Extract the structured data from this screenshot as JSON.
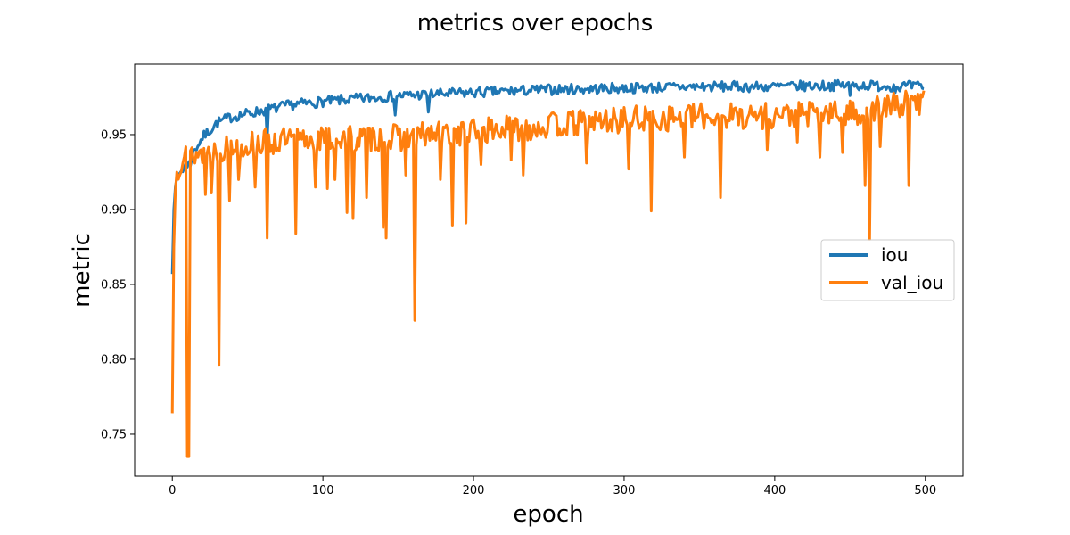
{
  "chart_data": {
    "type": "line",
    "title": "metrics over epochs",
    "xlabel": "epoch",
    "ylabel": "metric",
    "xlim": [
      -25,
      525
    ],
    "ylim": [
      0.722,
      0.997
    ],
    "xticks": [
      0,
      100,
      200,
      300,
      400,
      500
    ],
    "yticks": [
      0.75,
      0.8,
      0.85,
      0.9,
      0.95
    ],
    "ytick_labels": [
      "0.75",
      "0.80",
      "0.85",
      "0.90",
      "0.95"
    ],
    "grid": false,
    "legend_position": "center-right",
    "n_epochs": 500,
    "series": [
      {
        "name": "iou",
        "color": "#1f77b4",
        "anchors": [
          [
            0,
            0.857
          ],
          [
            1,
            0.9
          ],
          [
            2,
            0.915
          ],
          [
            3,
            0.921
          ],
          [
            5,
            0.925
          ],
          [
            10,
            0.93
          ],
          [
            15,
            0.94
          ],
          [
            20,
            0.948
          ],
          [
            30,
            0.958
          ],
          [
            40,
            0.962
          ],
          [
            60,
            0.966
          ],
          [
            80,
            0.97
          ],
          [
            100,
            0.972
          ],
          [
            150,
            0.976
          ],
          [
            200,
            0.978
          ],
          [
            250,
            0.98
          ],
          [
            300,
            0.981
          ],
          [
            350,
            0.982
          ],
          [
            400,
            0.982
          ],
          [
            450,
            0.983
          ],
          [
            500,
            0.982
          ]
        ],
        "noise": 0.0035,
        "noise_seed": 7,
        "dips": [
          [
            11,
            0.932
          ],
          [
            12,
            0.929
          ],
          [
            63,
            0.945
          ],
          [
            148,
            0.963
          ],
          [
            170,
            0.965
          ],
          [
            450,
            0.976
          ],
          [
            480,
            0.978
          ]
        ]
      },
      {
        "name": "val_iou",
        "color": "#ff7f0e",
        "anchors": [
          [
            0,
            0.764
          ],
          [
            1,
            0.875
          ],
          [
            2,
            0.912
          ],
          [
            3,
            0.925
          ],
          [
            5,
            0.932
          ],
          [
            10,
            0.936
          ],
          [
            20,
            0.938
          ],
          [
            40,
            0.942
          ],
          [
            60,
            0.945
          ],
          [
            100,
            0.947
          ],
          [
            150,
            0.948
          ],
          [
            200,
            0.952
          ],
          [
            250,
            0.956
          ],
          [
            300,
            0.96
          ],
          [
            350,
            0.962
          ],
          [
            400,
            0.963
          ],
          [
            450,
            0.964
          ],
          [
            500,
            0.973
          ]
        ],
        "noise": 0.009,
        "noise_seed": 13,
        "dips": [
          [
            10,
            0.735
          ],
          [
            11,
            0.735
          ],
          [
            31,
            0.796
          ],
          [
            63,
            0.881
          ],
          [
            82,
            0.884
          ],
          [
            161,
            0.826
          ],
          [
            142,
            0.881
          ],
          [
            140,
            0.888
          ],
          [
            186,
            0.889
          ],
          [
            195,
            0.891
          ],
          [
            155,
            0.923
          ],
          [
            120,
            0.894
          ],
          [
            116,
            0.898
          ],
          [
            178,
            0.92
          ],
          [
            233,
            0.923
          ],
          [
            275,
            0.931
          ],
          [
            303,
            0.927
          ],
          [
            318,
            0.899
          ],
          [
            364,
            0.908
          ],
          [
            460,
            0.916
          ],
          [
            463,
            0.88
          ],
          [
            489,
            0.916
          ],
          [
            22,
            0.91
          ],
          [
            38,
            0.906
          ],
          [
            26,
            0.911
          ],
          [
            44,
            0.92
          ],
          [
            55,
            0.915
          ],
          [
            95,
            0.915
          ],
          [
            103,
            0.914
          ],
          [
            108,
            0.92
          ],
          [
            129,
            0.908
          ],
          [
            205,
            0.93
          ],
          [
            225,
            0.933
          ],
          [
            340,
            0.935
          ],
          [
            395,
            0.94
          ],
          [
            415,
            0.945
          ],
          [
            430,
            0.935
          ],
          [
            445,
            0.938
          ],
          [
            470,
            0.942
          ]
        ]
      }
    ]
  }
}
